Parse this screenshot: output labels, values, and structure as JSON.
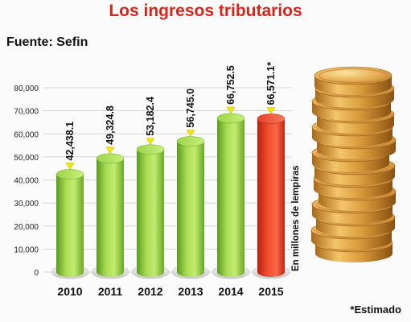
{
  "header": {
    "title": "Los ingresos tributarios",
    "source": "Fuente: Sefin"
  },
  "footnote": "*Estimado",
  "colors": {
    "title": "#d8251c",
    "bar_green": "#8cc63f",
    "bar_red": "#e2311f",
    "arrow": "#f2e600"
  },
  "chart_data": {
    "type": "bar",
    "categories": [
      "2010",
      "2011",
      "2012",
      "2013",
      "2014",
      "2015"
    ],
    "values": [
      42438.1,
      49324.8,
      53182.4,
      56745.0,
      66752.5,
      66571.1
    ],
    "data_labels": [
      "42,438.1",
      "49,324.8",
      "53,182.4",
      "56,745.0",
      "66,752.5",
      "66,571.1*"
    ],
    "title": "Los ingresos tributarios",
    "xlabel": "",
    "ylabel": "En millones de lempiras",
    "ylim": [
      0,
      80000
    ],
    "yticks": [
      0,
      10000,
      20000,
      30000,
      40000,
      50000,
      60000,
      70000,
      80000
    ],
    "ytick_labels": [
      "0",
      "10,000",
      "20,000",
      "30,000",
      "40,000",
      "50,000",
      "60,000",
      "70,000",
      "80,000"
    ],
    "grid": true,
    "highlight_index": 5
  }
}
